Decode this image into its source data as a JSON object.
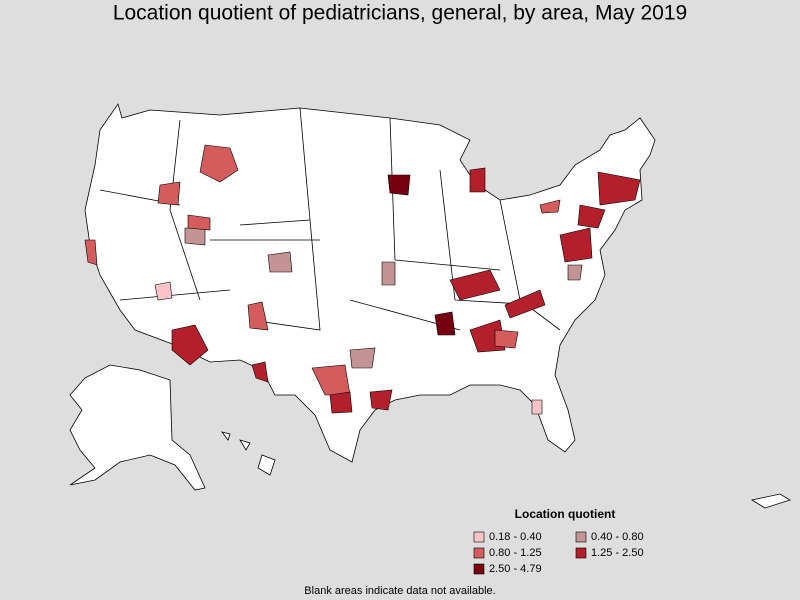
{
  "title": "Location quotient of pediatricians, general, by area, May 2019",
  "legend": {
    "title": "Location quotient",
    "items": [
      {
        "label": "0.18 - 0.40",
        "color": "#f8c4c8"
      },
      {
        "label": "0.40 - 0.80",
        "color": "#c39493"
      },
      {
        "label": "0.80 - 1.25",
        "color": "#d45c5c"
      },
      {
        "label": "1.25 - 2.50",
        "color": "#b3202b"
      },
      {
        "label": "2.50 - 4.79",
        "color": "#760010"
      }
    ]
  },
  "note": "Blank areas indicate data not available."
}
